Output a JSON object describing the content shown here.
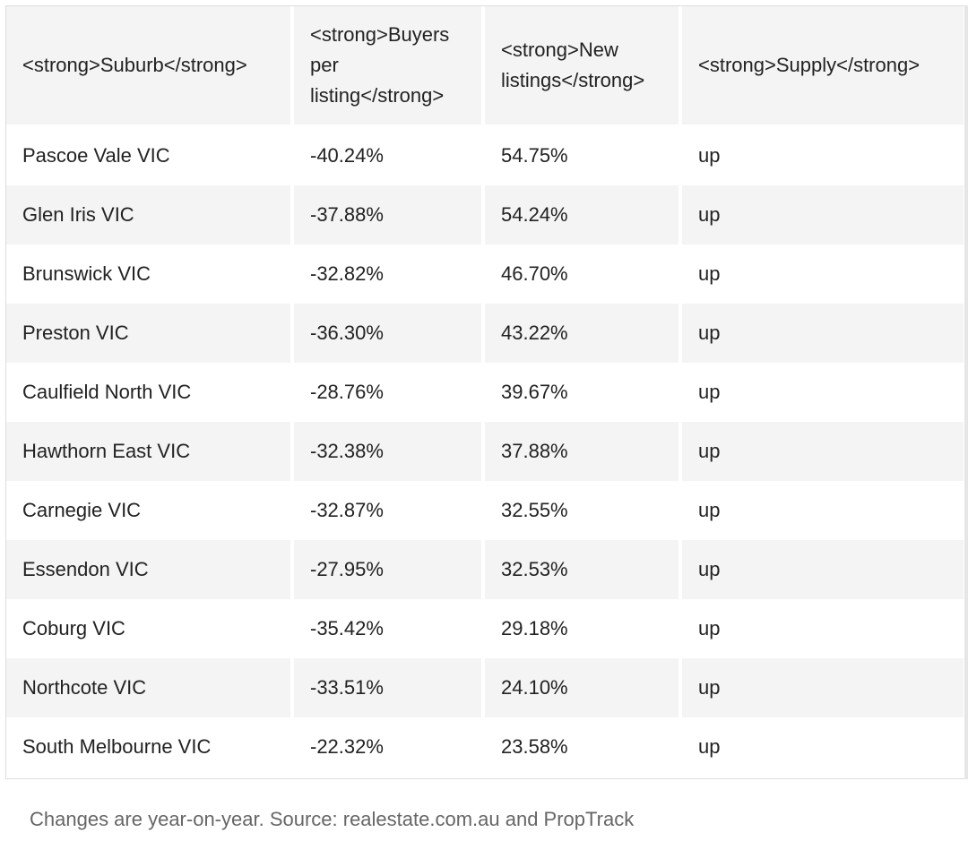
{
  "table": {
    "headers": [
      "<strong>Suburb</strong>",
      "<strong>Buyers per listing</strong>",
      "<strong>New listings</strong>",
      "<strong>Supply</strong>"
    ],
    "rows": [
      [
        "Pascoe Vale VIC",
        "-40.24%",
        "54.75%",
        "up"
      ],
      [
        "Glen Iris VIC",
        "-37.88%",
        "54.24%",
        "up"
      ],
      [
        "Brunswick VIC",
        "-32.82%",
        "46.70%",
        "up"
      ],
      [
        "Preston VIC",
        "-36.30%",
        "43.22%",
        "up"
      ],
      [
        "Caulfield North VIC",
        "-28.76%",
        "39.67%",
        "up"
      ],
      [
        "Hawthorn East VIC",
        "-32.38%",
        "37.88%",
        "up"
      ],
      [
        "Carnegie VIC",
        "-32.87%",
        "32.55%",
        "up"
      ],
      [
        "Essendon VIC",
        "-27.95%",
        "32.53%",
        "up"
      ],
      [
        "Coburg VIC",
        "-35.42%",
        "29.18%",
        "up"
      ],
      [
        "Northcote VIC",
        "-33.51%",
        "24.10%",
        "up"
      ],
      [
        "South Melbourne VIC",
        "-22.32%",
        "23.58%",
        "up"
      ]
    ]
  },
  "caption": "Changes are year-on-year. Source: realestate.com.au and PropTrack"
}
